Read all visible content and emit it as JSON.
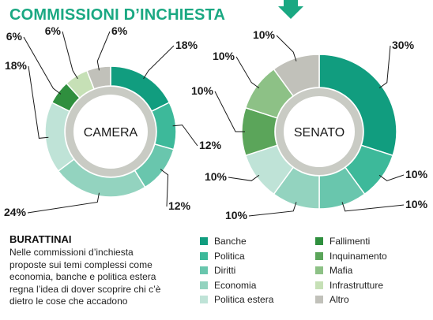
{
  "title": "COMMISSIONI D’INCHIESTA",
  "colors": {
    "Banche": "#119d7f",
    "Politica": "#3db99a",
    "Diritti": "#69c6ad",
    "Economia": "#93d3bf",
    "Politica estera": "#bfe3d7",
    "Fallimenti": "#2f8f3e",
    "Inquinamento": "#5ba55a",
    "Mafia": "#8dc186",
    "Infrastrutture": "#c6e0b6",
    "Altro": "#c1c1ba"
  },
  "chart_data": [
    {
      "type": "pie",
      "center_label": "CAMERA",
      "slices": [
        {
          "category": "Banche",
          "label": "18%",
          "value": 18
        },
        {
          "category": "Politica",
          "label": "12%",
          "value": 12
        },
        {
          "category": "Diritti",
          "label": "12%",
          "value": 12
        },
        {
          "category": "Economia",
          "label": "24%",
          "value": 24
        },
        {
          "category": "Politica estera",
          "label": "18%",
          "value": 18
        },
        {
          "category": "Fallimenti",
          "label": "6%",
          "value": 6
        },
        {
          "category": "Infrastrutture",
          "label": "6%",
          "value": 6
        },
        {
          "category": "Altro",
          "label": "6%",
          "value": 6
        }
      ]
    },
    {
      "type": "pie",
      "center_label": "SENATO",
      "slices": [
        {
          "category": "Banche",
          "label": "30%",
          "value": 30
        },
        {
          "category": "Politica",
          "label": "10%",
          "value": 10
        },
        {
          "category": "Diritti",
          "label": "10%",
          "value": 10
        },
        {
          "category": "Economia",
          "label": "10%",
          "value": 10
        },
        {
          "category": "Politica estera",
          "label": "10%",
          "value": 10
        },
        {
          "category": "Inquinamento",
          "label": "10%",
          "value": 10
        },
        {
          "category": "Mafia",
          "label": "10%",
          "value": 10
        },
        {
          "category": "Altro",
          "label": "10%",
          "value": 10
        }
      ]
    }
  ],
  "caption": {
    "title": "BURATTINAI",
    "text": "Nelle commissioni d’inchiesta proposte sui temi complessi come economia, banche e politica estera regna l’idea di dover scoprire chi c’è dietro le cose che accadono"
  },
  "legend": {
    "left": [
      "Banche",
      "Politica",
      "Diritti",
      "Economia",
      "Politica estera"
    ],
    "right": [
      "Fallimenti",
      "Inquinamento",
      "Mafia",
      "Infrastrutture",
      "Altro"
    ]
  }
}
